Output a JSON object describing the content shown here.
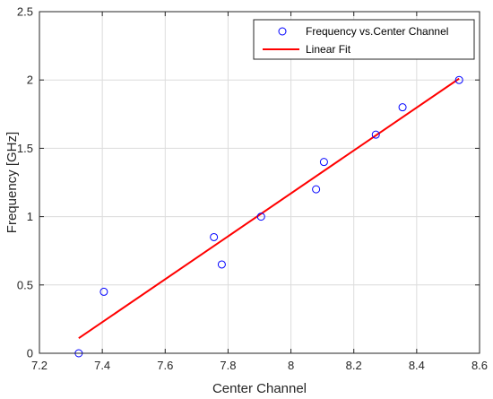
{
  "chart_data": {
    "type": "scatter",
    "xlabel": "Center Channel",
    "ylabel": "Frequency [GHz]",
    "xlim": [
      7.2,
      8.6
    ],
    "ylim": [
      0,
      2.5
    ],
    "x_ticks": [
      "7.2",
      "7.4",
      "7.6",
      "7.8",
      "8",
      "8.2",
      "8.4",
      "8.6"
    ],
    "y_ticks": [
      "0",
      "0.5",
      "1",
      "1.5",
      "2",
      "2.5"
    ],
    "grid": true,
    "legend_position": "top-right",
    "series": [
      {
        "name": "Frequency vs.Center Channel",
        "type": "scatter",
        "marker": "circle-open",
        "color": "#0000ff",
        "x": [
          7.325,
          7.405,
          7.755,
          7.78,
          7.905,
          8.08,
          8.105,
          8.27,
          8.355,
          8.535
        ],
        "y": [
          0,
          0.45,
          0.85,
          0.65,
          1.0,
          1.2,
          1.4,
          1.6,
          1.8,
          2.0
        ]
      },
      {
        "name": "Linear Fit",
        "type": "line",
        "color": "#ff0000",
        "x": [
          7.325,
          8.535
        ],
        "y": [
          0.11,
          2.01
        ]
      }
    ]
  }
}
